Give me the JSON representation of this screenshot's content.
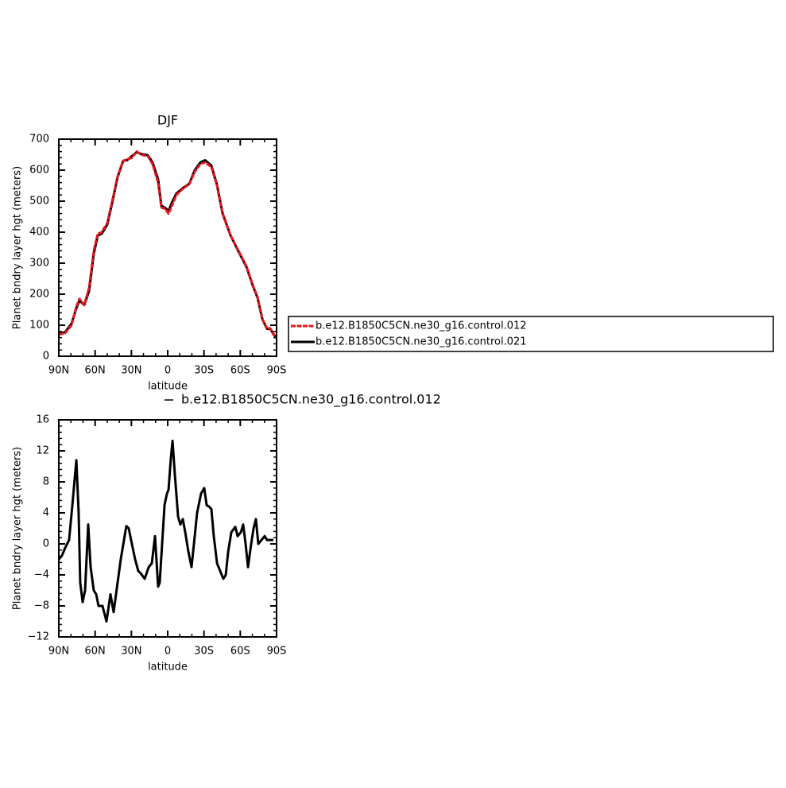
{
  "chart_data": [
    {
      "type": "line",
      "title": "DJF",
      "ylabel": "Planet bndry layer hgt (meters)",
      "xlabel": "latitude",
      "x": [
        90,
        84.7,
        79.5,
        75.5,
        72.9,
        69.0,
        65.0,
        61.1,
        57.8,
        54.5,
        49.9,
        45.3,
        41.4,
        36.8,
        33.5,
        29.6,
        25.6,
        21.7,
        16.4,
        12.5,
        7.9,
        5.2,
        1.9,
        -0.7,
        -4.0,
        -7.2,
        -12.5,
        -17.8,
        -22.4,
        -27.0,
        -30.9,
        -36.1,
        -40.8,
        -45.3,
        -51.9,
        -58.5,
        -65.1,
        -70.3,
        -74.3,
        -78.2,
        -82.1,
        -84.8,
        -87.4,
        -90
      ],
      "series": [
        {
          "name": "b.e12.B1850C5CN.ne30_g16.control.012",
          "color": "#e8141c",
          "dashed": true,
          "values": [
            70,
            75,
            100,
            160,
            185,
            165,
            220,
            340,
            395,
            400,
            430,
            510,
            580,
            630,
            635,
            640,
            660,
            650,
            645,
            620,
            560,
            480,
            475,
            460,
            490,
            520,
            540,
            555,
            595,
            620,
            625,
            610,
            550,
            460,
            390,
            340,
            290,
            230,
            190,
            120,
            90,
            90,
            70,
            60
          ]
        },
        {
          "name": "b.e12.B1850C5CN.ne30_g16.control.021",
          "color": "#000000",
          "dashed": false,
          "values": [
            72,
            78,
            105,
            155,
            180,
            165,
            210,
            330,
            390,
            395,
            425,
            505,
            578,
            630,
            632,
            645,
            658,
            652,
            648,
            625,
            570,
            485,
            478,
            468,
            500,
            525,
            542,
            556,
            600,
            625,
            632,
            615,
            552,
            462,
            390,
            338,
            288,
            228,
            188,
            120,
            88,
            88,
            72,
            58
          ]
        }
      ],
      "xlim": [
        90,
        -90
      ],
      "xticks": [
        {
          "value": 90,
          "label": "90N"
        },
        {
          "value": 60,
          "label": "60N"
        },
        {
          "value": 30,
          "label": "30N"
        },
        0,
        {
          "value": -30,
          "label": "30S"
        },
        {
          "value": -60,
          "label": "60S"
        },
        {
          "value": -90,
          "label": "90S"
        }
      ],
      "ylim": [
        0,
        700
      ],
      "yticks": [
        0,
        100,
        200,
        300,
        400,
        500,
        600,
        700
      ],
      "legend": "outside-right"
    },
    {
      "type": "line",
      "ylabel": "Planet bndry layer hgt (meters)",
      "xlabel": "latitude",
      "x": [
        90,
        87.4,
        84.7,
        81.5,
        78.8,
        75.5,
        73.6,
        72.3,
        70.3,
        68.3,
        65.7,
        63.7,
        61.1,
        59.1,
        57.2,
        53.9,
        50.6,
        47.3,
        44.7,
        41.4,
        38.8,
        34.2,
        32.2,
        29.6,
        26.9,
        24.3,
        22.3,
        19.0,
        15.7,
        13.1,
        10.5,
        7.9,
        6.6,
        4.6,
        2.6,
        0.6,
        -0.7,
        -2.6,
        -4.0,
        -5.9,
        -8.6,
        -10.5,
        -12.5,
        -14.5,
        -17.1,
        -19.7,
        -21.7,
        -24.3,
        -27.6,
        -30.2,
        -32.2,
        -34.2,
        -36.1,
        -38.1,
        -40.8,
        -43.4,
        -46.0,
        -48.0,
        -50.0,
        -52.6,
        -55.9,
        -57.8,
        -60.5,
        -62.4,
        -64.4,
        -66.4,
        -69.0,
        -71.0,
        -72.9,
        -74.9,
        -77.5,
        -80.2,
        -82.1,
        -84.8,
        -87.4
      ],
      "series": [
        {
          "name": "b.e12.B1850C5CN.ne30_g16.control.012",
          "color": "#000000",
          "dashed": false,
          "values": [
            -2,
            -1.5,
            -0.5,
            0.5,
            5,
            10.8,
            4,
            -5,
            -7.5,
            -6,
            2.5,
            -3,
            -6,
            -6.5,
            -8,
            -8,
            -10,
            -6.5,
            -8.8,
            -5,
            -2,
            2.3,
            2,
            0,
            -2,
            -3.5,
            -3.8,
            -4.5,
            -3,
            -2.5,
            1,
            -5.5,
            -5,
            0,
            5,
            6.5,
            7,
            11,
            13.3,
            9,
            3.5,
            2.5,
            3.2,
            1.5,
            -1,
            -3,
            0,
            4,
            6.5,
            7.2,
            5,
            4.8,
            4.5,
            1,
            -2.5,
            -3.5,
            -4.5,
            -4,
            -1,
            1.5,
            2.2,
            1,
            1.5,
            2.5,
            0,
            -3,
            0,
            2,
            3.2,
            0,
            0.5,
            1,
            0.5,
            0.5,
            0.5
          ]
        }
      ],
      "xlim": [
        90,
        -90
      ],
      "xticks": [
        {
          "value": 90,
          "label": "90N"
        },
        {
          "value": 60,
          "label": "60N"
        },
        {
          "value": 30,
          "label": "30N"
        },
        0,
        {
          "value": -30,
          "label": "30S"
        },
        {
          "value": -60,
          "label": "60S"
        },
        {
          "value": -90,
          "label": "90S"
        }
      ],
      "ylim": [
        -12,
        16
      ],
      "yticks": [
        {
          "value": -12,
          "label": "−12"
        },
        {
          "value": -8,
          "label": "−8"
        },
        {
          "value": -4,
          "label": "−4"
        },
        0,
        4,
        8,
        12,
        16
      ],
      "legend": "top"
    }
  ]
}
